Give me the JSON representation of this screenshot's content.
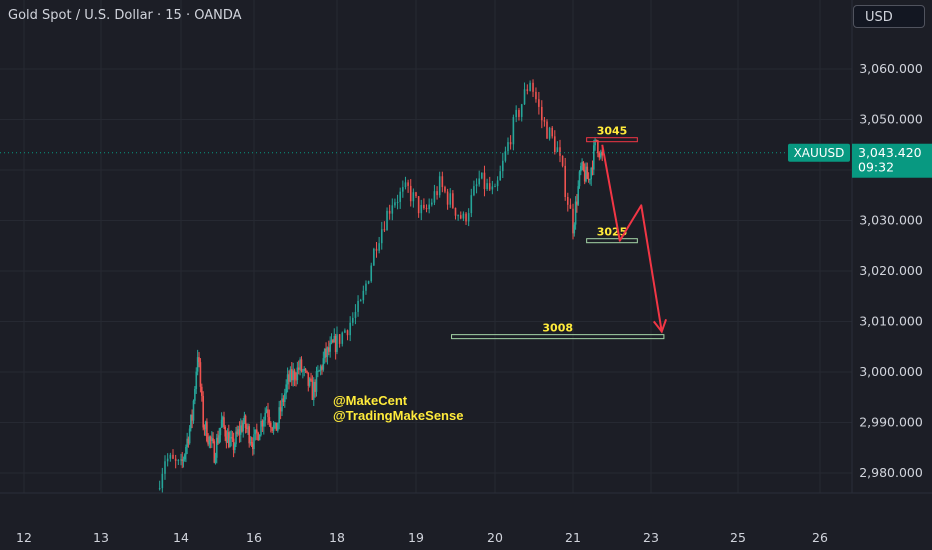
{
  "header": {
    "symbol_title": "Gold Spot / U.S. Dollar · 15 · OANDA",
    "currency_button": "USD"
  },
  "price_tag": {
    "symbol": "XAUUSD",
    "price": "3,043.420",
    "countdown": "09:32"
  },
  "watermark": {
    "line1": "@MakeCent",
    "line2": "@TradingMakeSense"
  },
  "colors": {
    "background": "#1c1e26",
    "grid": "#262932",
    "up": "#26a69a",
    "down": "#ef5350",
    "annotation_red": "#f23645",
    "zone_green": "#a5d6a7",
    "label_yellow": "#ffeb3b",
    "tag_green": "#089981",
    "axis_text": "#d1d4dc"
  },
  "chart_data": {
    "type": "candlestick",
    "title": "Gold Spot / U.S. Dollar · 15 · OANDA",
    "symbol": "XAUUSD",
    "timeframe": "15",
    "x_ticks": [
      "12",
      "13",
      "14",
      "16",
      "18",
      "19",
      "20",
      "21",
      "23",
      "25",
      "26"
    ],
    "y_ticks": [
      "2,980.000",
      "2,990.000",
      "3,000.000",
      "3,010.000",
      "3,020.000",
      "3,030.000",
      "3,040.000",
      "3,050.000",
      "3,060.000"
    ],
    "ylim": [
      2976,
      3068
    ],
    "last_price": 3043.42,
    "price_path": [
      [
        13.7,
        2977
      ],
      [
        13.8,
        2983
      ],
      [
        14.0,
        2981
      ],
      [
        14.3,
        2991
      ],
      [
        14.45,
        3004
      ],
      [
        14.6,
        2990
      ],
      [
        14.9,
        2984
      ],
      [
        15.1,
        2990
      ],
      [
        15.4,
        2985
      ],
      [
        15.7,
        2990
      ],
      [
        16.0,
        2986
      ],
      [
        16.3,
        2993
      ],
      [
        16.5,
        2988
      ],
      [
        16.8,
        2998
      ],
      [
        17.1,
        3001
      ],
      [
        17.4,
        2996
      ],
      [
        17.7,
        3003
      ],
      [
        18.0,
        3006
      ],
      [
        18.3,
        3013
      ],
      [
        18.5,
        3026
      ],
      [
        18.7,
        3034
      ],
      [
        18.9,
        3036
      ],
      [
        19.1,
        3031
      ],
      [
        19.3,
        3037
      ],
      [
        19.6,
        3030
      ],
      [
        19.8,
        3038
      ],
      [
        20.0,
        3035
      ],
      [
        20.2,
        3047
      ],
      [
        20.45,
        3058
      ],
      [
        20.6,
        3050
      ],
      [
        20.8,
        3044
      ],
      [
        21.0,
        3029
      ],
      [
        21.2,
        3040
      ],
      [
        21.4,
        3038
      ],
      [
        21.6,
        3046
      ],
      [
        21.75,
        3042
      ]
    ],
    "levels": [
      {
        "label": "3045",
        "price": 3046,
        "from": 21.35,
        "to": 22.65,
        "color": "red"
      },
      {
        "label": "3025",
        "price": 3026,
        "from": 21.35,
        "to": 22.65,
        "color": "green"
      },
      {
        "label": "3008",
        "price": 3007,
        "from": 19.45,
        "to": 23.3,
        "color": "green"
      }
    ],
    "projection": [
      [
        21.75,
        3045
      ],
      [
        22.2,
        3026
      ],
      [
        22.75,
        3033
      ],
      [
        23.25,
        3008
      ]
    ],
    "grid": true
  }
}
